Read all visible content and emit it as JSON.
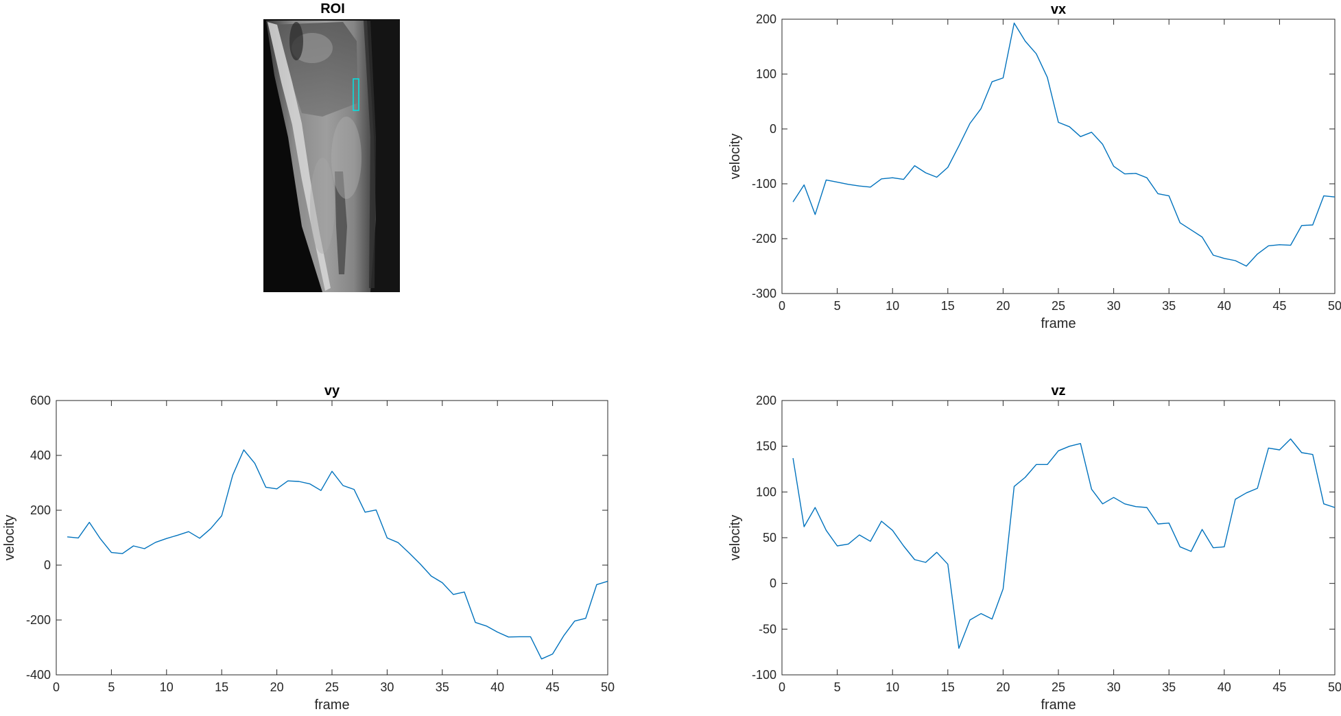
{
  "figure": {
    "roi_panel": {
      "title": "ROI",
      "image_description_icon": "mri-knee-slice-image",
      "roi_box_color": "#00e5e5"
    }
  },
  "colors": {
    "series_line": "#0072bd",
    "axis": "#262626",
    "background": "#ffffff"
  },
  "chart_data": [
    {
      "id": "vx",
      "type": "line",
      "title": "vx",
      "xlabel": "frame",
      "ylabel": "velocity",
      "xlim": [
        0,
        50
      ],
      "ylim": [
        -300,
        200
      ],
      "xticks": [
        0,
        5,
        10,
        15,
        20,
        25,
        30,
        35,
        40,
        45,
        50
      ],
      "yticks": [
        -300,
        -200,
        -100,
        0,
        100,
        200
      ],
      "grid": false,
      "x": [
        1,
        2,
        3,
        4,
        5,
        6,
        7,
        8,
        9,
        10,
        11,
        12,
        13,
        14,
        15,
        16,
        17,
        18,
        19,
        20,
        21,
        22,
        23,
        24,
        25,
        26,
        27,
        28,
        29,
        30,
        31,
        32,
        33,
        34,
        35,
        36,
        37,
        38,
        39,
        40,
        41,
        42,
        43,
        44,
        45,
        46,
        47,
        48,
        49,
        50
      ],
      "values": [
        -133,
        -102,
        -156,
        -93,
        -97,
        -101,
        -104,
        -106,
        -91,
        -89,
        -92,
        -67,
        -80,
        -88,
        -70,
        -31,
        10,
        37,
        86,
        93,
        193,
        160,
        137,
        94,
        12,
        4,
        -14,
        -6,
        -28,
        -68,
        -82,
        -81,
        -89,
        -118,
        -122,
        -171,
        -184,
        -197,
        -230,
        -236,
        -240,
        -250,
        -228,
        -213,
        -211,
        -212,
        -176,
        -175,
        -122,
        -124
      ]
    },
    {
      "id": "vy",
      "type": "line",
      "title": "vy",
      "xlabel": "frame",
      "ylabel": "velocity",
      "xlim": [
        0,
        50
      ],
      "ylim": [
        -400,
        600
      ],
      "xticks": [
        0,
        5,
        10,
        15,
        20,
        25,
        30,
        35,
        40,
        45,
        50
      ],
      "yticks": [
        -400,
        -200,
        0,
        200,
        400,
        600
      ],
      "grid": false,
      "x": [
        1,
        2,
        3,
        4,
        5,
        6,
        7,
        8,
        9,
        10,
        11,
        12,
        13,
        14,
        15,
        16,
        17,
        18,
        19,
        20,
        21,
        22,
        23,
        24,
        25,
        26,
        27,
        28,
        29,
        30,
        31,
        32,
        33,
        34,
        35,
        36,
        37,
        38,
        39,
        40,
        41,
        42,
        43,
        44,
        45,
        46,
        47,
        48,
        49,
        50
      ],
      "values": [
        103,
        99,
        156,
        96,
        46,
        42,
        70,
        60,
        83,
        97,
        109,
        122,
        98,
        133,
        180,
        328,
        420,
        371,
        284,
        278,
        307,
        305,
        296,
        272,
        342,
        290,
        276,
        193,
        201,
        99,
        82,
        44,
        4,
        -40,
        -64,
        -107,
        -98,
        -209,
        -222,
        -244,
        -262,
        -261,
        -261,
        -342,
        -324,
        -258,
        -204,
        -194,
        -71,
        -59
      ]
    },
    {
      "id": "vz",
      "type": "line",
      "title": "vz",
      "xlabel": "frame",
      "ylabel": "velocity",
      "xlim": [
        0,
        50
      ],
      "ylim": [
        -100,
        200
      ],
      "xticks": [
        0,
        5,
        10,
        15,
        20,
        25,
        30,
        35,
        40,
        45,
        50
      ],
      "yticks": [
        -100,
        -50,
        0,
        50,
        100,
        150,
        200
      ],
      "grid": false,
      "x": [
        1,
        2,
        3,
        4,
        5,
        6,
        7,
        8,
        9,
        10,
        11,
        12,
        13,
        14,
        15,
        16,
        17,
        18,
        19,
        20,
        21,
        22,
        23,
        24,
        25,
        26,
        27,
        28,
        29,
        30,
        31,
        32,
        33,
        34,
        35,
        36,
        37,
        38,
        39,
        40,
        41,
        42,
        43,
        44,
        45,
        46,
        47,
        48,
        49,
        50
      ],
      "values": [
        137,
        62,
        83,
        58,
        41,
        43,
        53,
        46,
        68,
        58,
        41,
        26,
        23,
        34,
        21,
        -71,
        -40,
        -33,
        -39,
        -6,
        106,
        116,
        130,
        130,
        145,
        150,
        153,
        103,
        87,
        94,
        87,
        84,
        83,
        65,
        66,
        40,
        35,
        59,
        39,
        40,
        92,
        99,
        104,
        148,
        146,
        158,
        143,
        141,
        87,
        83
      ]
    }
  ]
}
